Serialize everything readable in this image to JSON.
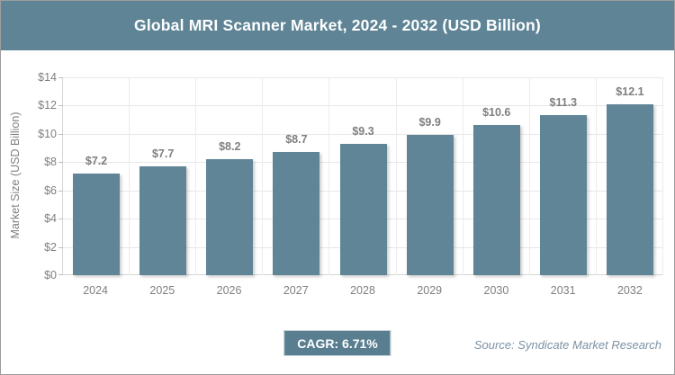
{
  "header": {
    "title": "Global MRI Scanner Market, 2024 - 2032 (USD Billion)"
  },
  "chart_data": {
    "type": "bar",
    "title": "Global MRI Scanner Market, 2024 - 2032 (USD Billion)",
    "categories": [
      "2024",
      "2025",
      "2026",
      "2027",
      "2028",
      "2029",
      "2030",
      "2031",
      "2032"
    ],
    "values": [
      7.2,
      7.7,
      8.2,
      8.7,
      9.3,
      9.9,
      10.6,
      11.3,
      12.1
    ],
    "data_labels": [
      "$7.2",
      "$7.7",
      "$8.2",
      "$8.7",
      "$9.3",
      "$9.9",
      "$10.6",
      "$11.3",
      "$12.1"
    ],
    "xlabel": "",
    "ylabel": "Market Size (USD Billion)",
    "ylim": [
      0,
      14
    ],
    "yticks": [
      0,
      2,
      4,
      6,
      8,
      10,
      12,
      14
    ],
    "ytick_labels": [
      "$0",
      "$2",
      "$4",
      "$6",
      "$8",
      "$10",
      "$12",
      "$14"
    ],
    "grid": true,
    "legend": false
  },
  "footer": {
    "cagr_label": "CAGR: 6.71%",
    "source": "Source: Syndicate Market Research"
  },
  "colors": {
    "accent_slate": "#5E8495",
    "bar_fill": "#5F8597",
    "badge_fill": "#587E90",
    "gridline": "#e7e7e7",
    "axis_line": "#d6d6d6",
    "label_gray": "#7f7f7f",
    "source_text": "#7d93a4",
    "card_border": "#9d9d9d"
  }
}
